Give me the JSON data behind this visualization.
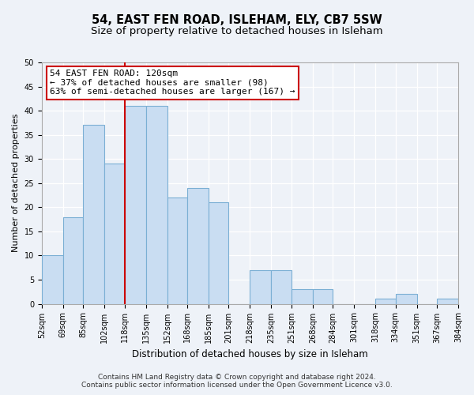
{
  "title": "54, EAST FEN ROAD, ISLEHAM, ELY, CB7 5SW",
  "subtitle": "Size of property relative to detached houses in Isleham",
  "xlabel": "Distribution of detached houses by size in Isleham",
  "ylabel": "Number of detached properties",
  "bins": [
    52,
    69,
    85,
    102,
    118,
    135,
    152,
    168,
    185,
    201,
    218,
    235,
    251,
    268,
    284,
    301,
    318,
    334,
    351,
    367,
    384
  ],
  "bin_labels": [
    "52sqm",
    "69sqm",
    "85sqm",
    "102sqm",
    "118sqm",
    "135sqm",
    "152sqm",
    "168sqm",
    "185sqm",
    "201sqm",
    "218sqm",
    "235sqm",
    "251sqm",
    "268sqm",
    "284sqm",
    "301sqm",
    "318sqm",
    "334sqm",
    "351sqm",
    "367sqm",
    "384sqm"
  ],
  "counts": [
    10,
    18,
    37,
    29,
    41,
    41,
    22,
    24,
    21,
    0,
    7,
    7,
    3,
    3,
    0,
    0,
    1,
    2,
    0,
    1
  ],
  "bar_color": "#c9ddf2",
  "bar_edgecolor": "#7bafd4",
  "property_line_x": 118,
  "annotation_line1": "54 EAST FEN ROAD: 120sqm",
  "annotation_line2": "← 37% of detached houses are smaller (98)",
  "annotation_line3": "63% of semi-detached houses are larger (167) →",
  "annotation_box_facecolor": "#ffffff",
  "annotation_box_edgecolor": "#cc0000",
  "red_line_color": "#cc0000",
  "ylim": [
    0,
    50
  ],
  "yticks": [
    0,
    5,
    10,
    15,
    20,
    25,
    30,
    35,
    40,
    45,
    50
  ],
  "footer_line1": "Contains HM Land Registry data © Crown copyright and database right 2024.",
  "footer_line2": "Contains public sector information licensed under the Open Government Licence v3.0.",
  "bg_color": "#eef2f8",
  "title_fontsize": 10.5,
  "subtitle_fontsize": 9.5,
  "xlabel_fontsize": 8.5,
  "ylabel_fontsize": 8,
  "tick_fontsize": 7,
  "footer_fontsize": 6.5,
  "annotation_fontsize": 8
}
